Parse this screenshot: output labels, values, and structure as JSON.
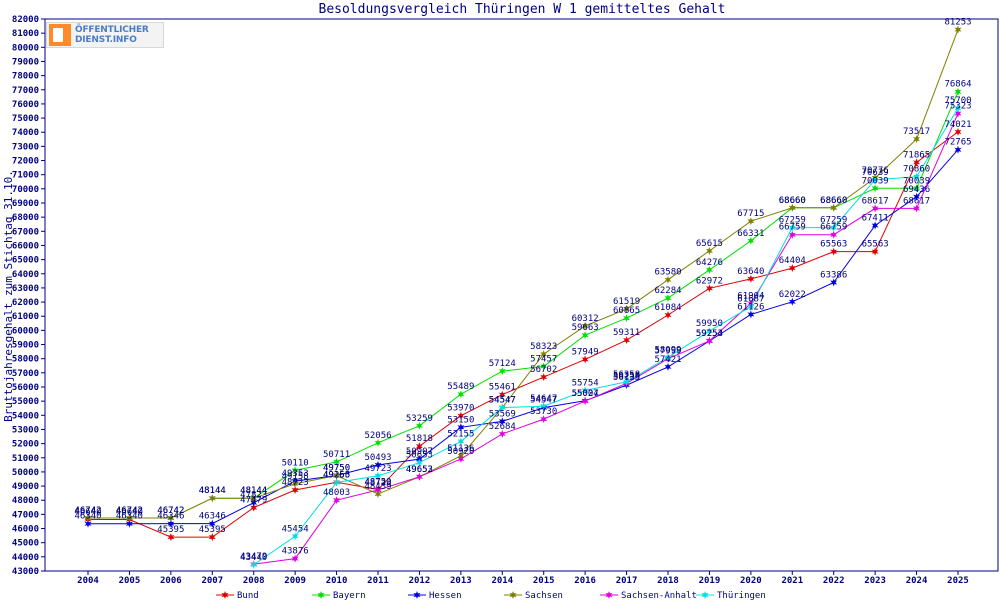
{
  "chart_data": {
    "type": "line",
    "title": "Besoldungsvergleich Thüringen W 1 gemitteltes Gehalt",
    "ylabel": "Bruttojahresgehalt zum Stichtag 31.10.",
    "xlabel": "",
    "x": [
      "2004",
      "2005",
      "2006",
      "2007",
      "2008",
      "2009",
      "2010",
      "2011",
      "2012",
      "2013",
      "2014",
      "2015",
      "2016",
      "2017",
      "2018",
      "2019",
      "2020",
      "2021",
      "2022",
      "2023",
      "2024",
      "2025"
    ],
    "ylim": [
      43000,
      82000
    ],
    "ytick_step": 1000,
    "grid": false,
    "legend_position": "bottom",
    "series": [
      {
        "name": "Bund",
        "color": "#e00000",
        "values": [
          46640,
          46640,
          45395,
          45395,
          47479,
          48723,
          49266,
          48750,
          51818,
          53970,
          55461,
          56702,
          57949,
          59311,
          61084,
          62972,
          63640,
          64404,
          65563,
          65563,
          71865,
          74021
        ]
      },
      {
        "name": "Bayern",
        "color": "#00e000",
        "values": [
          46742,
          46742,
          46742,
          48144,
          48144,
          50110,
          50711,
          52056,
          53259,
          55489,
          57124,
          57457,
          59663,
          60865,
          62284,
          64276,
          66331,
          68660,
          68660,
          70039,
          70039,
          76864
        ]
      },
      {
        "name": "Hessen",
        "color": "#0000e0",
        "values": [
          46340,
          46340,
          46346,
          46346,
          47823,
          49353,
          49750,
          50493,
          50907,
          53150,
          53569,
          54547,
          55027,
          56135,
          57421,
          59253,
          61126,
          62022,
          63386,
          67411,
          69436,
          72765
        ]
      },
      {
        "name": "Sachsen",
        "color": "#808000",
        "values": [
          46742,
          46742,
          46742,
          48144,
          48144,
          49158,
          49750,
          48439,
          49652,
          51136,
          54547,
          58323,
          60312,
          61519,
          63580,
          65615,
          67715,
          68660,
          68660,
          70776,
          73517,
          81253
        ]
      },
      {
        "name": "Sachsen-Anhalt",
        "color": "#e000e0",
        "values": [
          null,
          null,
          null,
          null,
          43479,
          43876,
          48003,
          48723,
          49653,
          50920,
          52684,
          53730,
          55004,
          56258,
          57999,
          59254,
          61904,
          66759,
          66759,
          68617,
          68617,
          75323
        ]
      },
      {
        "name": "Thüringen",
        "color": "#00e0e0",
        "values": [
          null,
          null,
          null,
          null,
          43440,
          45454,
          49253,
          49723,
          50653,
          52155,
          54547,
          54647,
          55754,
          56358,
          58099,
          59950,
          61687,
          67259,
          67259,
          70639,
          70860,
          75700
        ]
      }
    ]
  },
  "logo": {
    "line1": "ÖFFENTLICHER",
    "line2": "DIENST.INFO"
  }
}
